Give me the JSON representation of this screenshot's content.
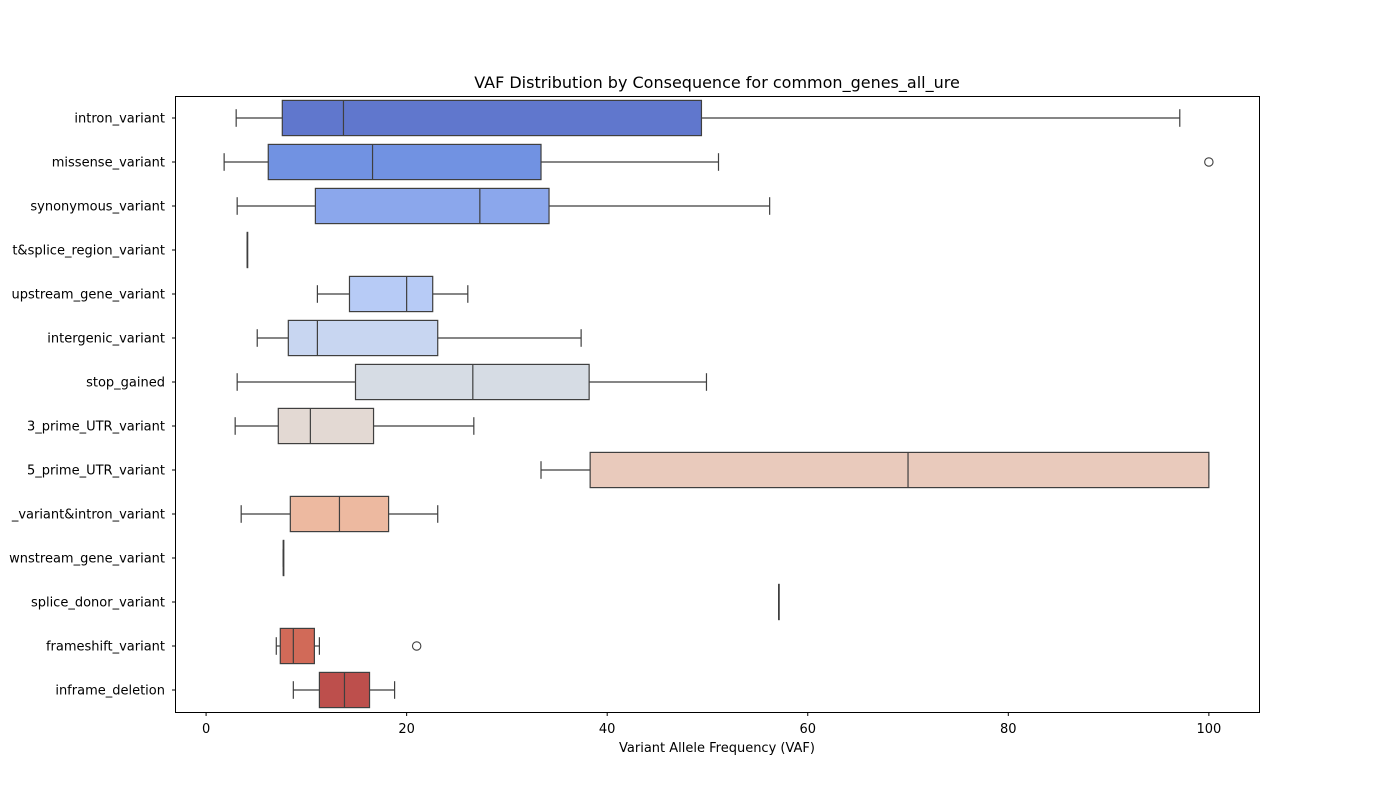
{
  "chart_data": {
    "type": "box",
    "title": "VAF Distribution by Consequence for common_genes_all_ure",
    "xlabel": "Variant Allele Frequency (VAF)",
    "ylabel": "",
    "xlim": [
      -3,
      105
    ],
    "xticks": [
      0,
      20,
      40,
      60,
      80,
      100
    ],
    "grid": false,
    "legend": "none",
    "categories": [
      "intron_variant",
      "missense_variant",
      "synonymous_variant",
      "splice_region_variant&splice_region_variant",
      "upstream_gene_variant",
      "intergenic_variant",
      "stop_gained",
      "3_prime_UTR_variant",
      "5_prime_UTR_variant",
      "splice_region_variant&intron_variant",
      "downstream_gene_variant",
      "splice_donor_variant",
      "frameshift_variant",
      "inframe_deletion"
    ],
    "displayed_labels": [
      "intron_variant",
      "missense_variant",
      "synonymous_variant",
      "t&splice_region_variant",
      "upstream_gene_variant",
      "intergenic_variant",
      "stop_gained",
      "3_prime_UTR_variant",
      "5_prime_UTR_variant",
      "_variant&intron_variant",
      "wnstream_gene_variant",
      "splice_donor_variant",
      "frameshift_variant",
      "inframe_deletion"
    ],
    "boxes": [
      {
        "whisker_low": 3.0,
        "q1": 7.6,
        "median": 13.7,
        "q3": 49.4,
        "whisker_high": 97.1,
        "outliers": [],
        "color": "#6077cd"
      },
      {
        "whisker_low": 1.8,
        "q1": 6.2,
        "median": 16.6,
        "q3": 33.4,
        "whisker_high": 51.1,
        "outliers": [
          100.0
        ],
        "color": "#7192e2"
      },
      {
        "whisker_low": 3.1,
        "q1": 10.9,
        "median": 27.3,
        "q3": 34.2,
        "whisker_high": 56.2,
        "outliers": [],
        "color": "#8ba7ec"
      },
      {
        "whisker_low": 4.1,
        "q1": 4.1,
        "median": 4.1,
        "q3": 4.1,
        "whisker_high": 4.1,
        "outliers": [],
        "color": "#a3bcf4"
      },
      {
        "whisker_low": 11.1,
        "q1": 14.3,
        "median": 20.0,
        "q3": 22.6,
        "whisker_high": 26.1,
        "outliers": [],
        "color": "#b7cbf6"
      },
      {
        "whisker_low": 5.1,
        "q1": 8.2,
        "median": 11.1,
        "q3": 23.1,
        "whisker_high": 37.4,
        "outliers": [],
        "color": "#c8d6f1"
      },
      {
        "whisker_low": 3.1,
        "q1": 14.9,
        "median": 26.6,
        "q3": 38.2,
        "whisker_high": 49.9,
        "outliers": [],
        "color": "#d6dce4"
      },
      {
        "whisker_low": 2.9,
        "q1": 7.2,
        "median": 10.4,
        "q3": 16.7,
        "whisker_high": 26.7,
        "outliers": [],
        "color": "#e3d9d3"
      },
      {
        "whisker_low": 33.4,
        "q1": 38.3,
        "median": 70.0,
        "q3": 100.0,
        "whisker_high": 100.0,
        "outliers": [],
        "color": "#e9cabc"
      },
      {
        "whisker_low": 3.5,
        "q1": 8.4,
        "median": 13.3,
        "q3": 18.2,
        "whisker_high": 23.1,
        "outliers": [],
        "color": "#edb9a0"
      },
      {
        "whisker_low": 7.7,
        "q1": 7.7,
        "median": 7.7,
        "q3": 7.7,
        "whisker_high": 7.7,
        "outliers": [],
        "color": "#e89e82"
      },
      {
        "whisker_low": 57.1,
        "q1": 57.1,
        "median": 57.1,
        "q3": 57.1,
        "whisker_high": 57.1,
        "outliers": [],
        "color": "#dd8466"
      },
      {
        "whisker_low": 7.0,
        "q1": 7.4,
        "median": 8.7,
        "q3": 10.8,
        "whisker_high": 11.3,
        "outliers": [
          21.0
        ],
        "color": "#d16a58"
      },
      {
        "whisker_low": 8.7,
        "q1": 11.3,
        "median": 13.8,
        "q3": 16.3,
        "whisker_high": 18.8,
        "outliers": [],
        "color": "#bd4f4c"
      }
    ]
  }
}
